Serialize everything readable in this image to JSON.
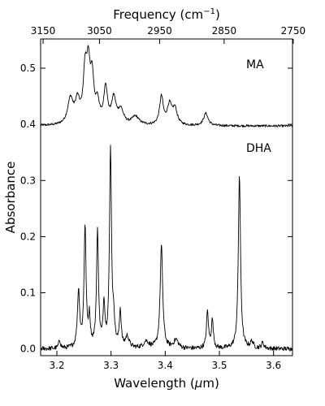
{
  "chart_data": {
    "type": "line",
    "xlabel_prefix": "Wavelength (",
    "xlabel_mu": "μ",
    "xlabel_suffix": "m)",
    "ylabel": "Absorbance",
    "top_axis_prefix": "Frequency (cm",
    "top_axis_exp": "−1",
    "top_axis_suffix": ")",
    "xlim": [
      3.17,
      3.635
    ],
    "ylim": [
      -0.012,
      0.552
    ],
    "x_ticks": [
      3.2,
      3.3,
      3.4,
      3.5,
      3.6
    ],
    "x_tick_labels": [
      "3.2",
      "3.3",
      "3.4",
      "3.5",
      "3.6"
    ],
    "y_ticks": [
      0.0,
      0.1,
      0.2,
      0.3,
      0.4,
      0.5
    ],
    "y_tick_labels": [
      "0.0",
      "0.1",
      "0.2",
      "0.3",
      "0.4",
      "0.5"
    ],
    "top_ticks": [
      3150,
      3050,
      2950,
      2850,
      2750
    ],
    "top_tick_labels": [
      "3150",
      "3050",
      "2950",
      "2850",
      "2750"
    ],
    "grid": false,
    "colors": {
      "line": "#000000",
      "axes": "#000000"
    },
    "series": [
      {
        "name": "MA",
        "baseline": 0.397,
        "peaks": [
          [
            3.225,
            0.045,
            0.006
          ],
          [
            3.238,
            0.038,
            0.005
          ],
          [
            3.252,
            0.085,
            0.004
          ],
          [
            3.258,
            0.09,
            0.004
          ],
          [
            3.265,
            0.075,
            0.004
          ],
          [
            3.275,
            0.035,
            0.004
          ],
          [
            3.29,
            0.065,
            0.004
          ],
          [
            3.305,
            0.045,
            0.005
          ],
          [
            3.318,
            0.025,
            0.006
          ],
          [
            3.345,
            0.015,
            0.008
          ],
          [
            3.393,
            0.05,
            0.004
          ],
          [
            3.408,
            0.035,
            0.005
          ],
          [
            3.418,
            0.028,
            0.005
          ],
          [
            3.475,
            0.022,
            0.005
          ]
        ],
        "noise": 0.002
      },
      {
        "name": "DHA",
        "baseline": 0.0,
        "peaks": [
          [
            3.205,
            0.015,
            0.002
          ],
          [
            3.24,
            0.1,
            0.0025
          ],
          [
            3.252,
            0.215,
            0.0022
          ],
          [
            3.26,
            0.05,
            0.002
          ],
          [
            3.275,
            0.205,
            0.0022
          ],
          [
            3.287,
            0.075,
            0.002
          ],
          [
            3.299,
            0.355,
            0.0022
          ],
          [
            3.305,
            0.04,
            0.002
          ],
          [
            3.317,
            0.065,
            0.002
          ],
          [
            3.33,
            0.02,
            0.004
          ],
          [
            3.365,
            0.012,
            0.006
          ],
          [
            3.393,
            0.183,
            0.0028
          ],
          [
            3.42,
            0.015,
            0.005
          ],
          [
            3.478,
            0.065,
            0.0022
          ],
          [
            3.487,
            0.05,
            0.0022
          ],
          [
            3.537,
            0.31,
            0.0024
          ],
          [
            3.56,
            0.012,
            0.003
          ],
          [
            3.58,
            0.01,
            0.003
          ]
        ],
        "noise": 0.004
      }
    ]
  }
}
